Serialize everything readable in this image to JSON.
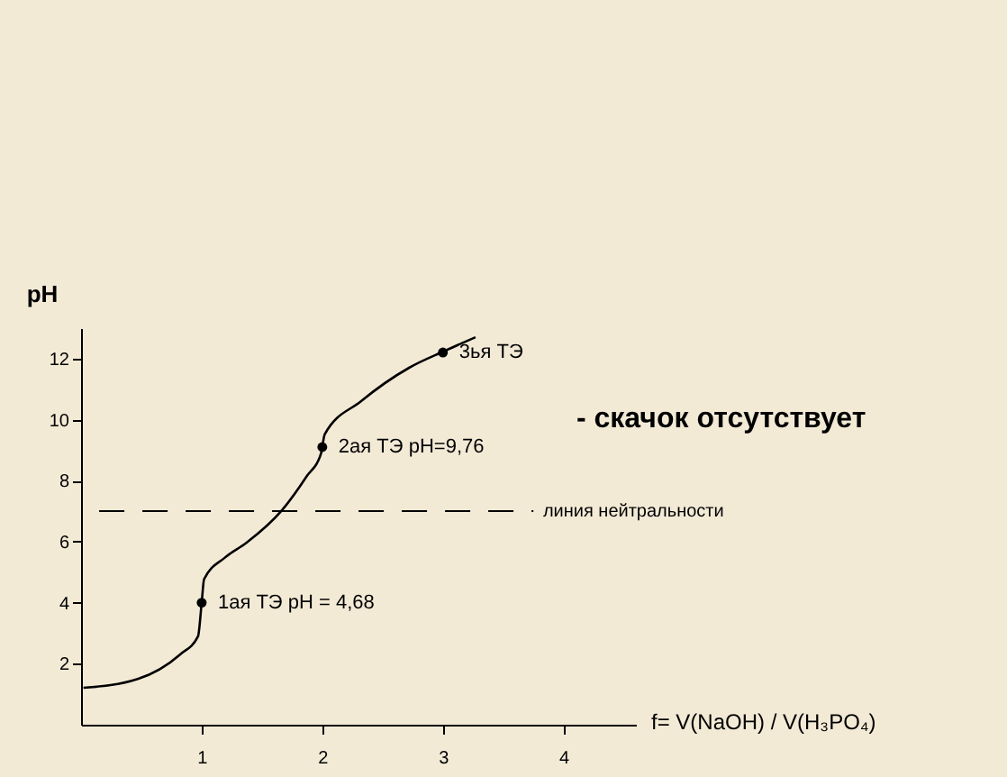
{
  "chart_data": {
    "type": "line",
    "xlabel": "f= V(NaOH) / V(H₃PO₄)",
    "ylabel": "pH",
    "xlim": [
      0,
      4.6
    ],
    "ylim": [
      0,
      13
    ],
    "xticks": [
      1,
      2,
      3,
      4
    ],
    "yticks": [
      2,
      4,
      6,
      8,
      10,
      12
    ],
    "grid": false,
    "marker": "none",
    "line_style": "solid",
    "series": [
      {
        "color": "#000000",
        "x": [
          0.02,
          0.47,
          0.82,
          0.97,
          1.0,
          1.02,
          1.19,
          1.37,
          1.67,
          1.87,
          1.99,
          2.02,
          2.32,
          2.72,
          3.02,
          3.27
        ],
        "values": [
          1.21,
          1.5,
          2.3,
          2.9,
          4.0,
          4.77,
          5.47,
          5.96,
          7.05,
          8.14,
          8.9,
          9.52,
          10.6,
          11.7,
          12.26,
          12.7
        ]
      },
      {
        "type": "scatter",
        "color": "#000000",
        "marker": "circle",
        "x": [
          1,
          2,
          3
        ],
        "values": [
          4.0,
          9.1,
          12.2
        ]
      }
    ],
    "ref_lines": [
      {
        "axis": "y",
        "value": 7,
        "label": "линия нейтральности",
        "color": "#000000",
        "line_style": "dashed"
      }
    ],
    "annotations": [
      {
        "text": "1ая   ТЭ  pH = 4,68",
        "x": 1,
        "y": 4.0
      },
      {
        "text": "2ая   ТЭ  pH=9,76",
        "x": 2,
        "y": 9.1
      },
      {
        "text": "3ья ТЭ",
        "x": 3,
        "y": 12.2
      },
      "- скачок отсутствует"
    ]
  }
}
